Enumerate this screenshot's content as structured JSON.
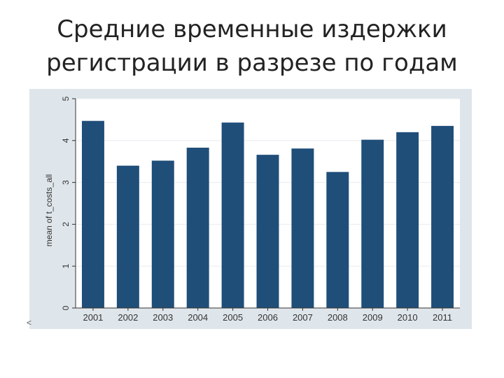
{
  "slide": {
    "title_line1": "Средние временные издержки",
    "title_line2": "регистрации в разрезе по годам"
  },
  "chart_data": {
    "type": "bar",
    "title": "",
    "xlabel": "",
    "ylabel": "mean of t_costs_all",
    "categories": [
      "2001",
      "2002",
      "2003",
      "2004",
      "2005",
      "2006",
      "2007",
      "2008",
      "2009",
      "2010",
      "2011"
    ],
    "values": [
      4.47,
      3.4,
      3.52,
      3.83,
      4.43,
      3.66,
      3.81,
      3.25,
      4.02,
      4.2,
      4.35
    ],
    "ylim": [
      0,
      5
    ],
    "yticks": [
      0,
      1,
      2,
      3,
      4,
      5
    ],
    "grid": true,
    "legend": "none",
    "colors": {
      "bar": "#1f4e79",
      "plot_background": "#ffffff",
      "outer_background": "#dfe6eb",
      "grid": "#e7ecef"
    }
  }
}
